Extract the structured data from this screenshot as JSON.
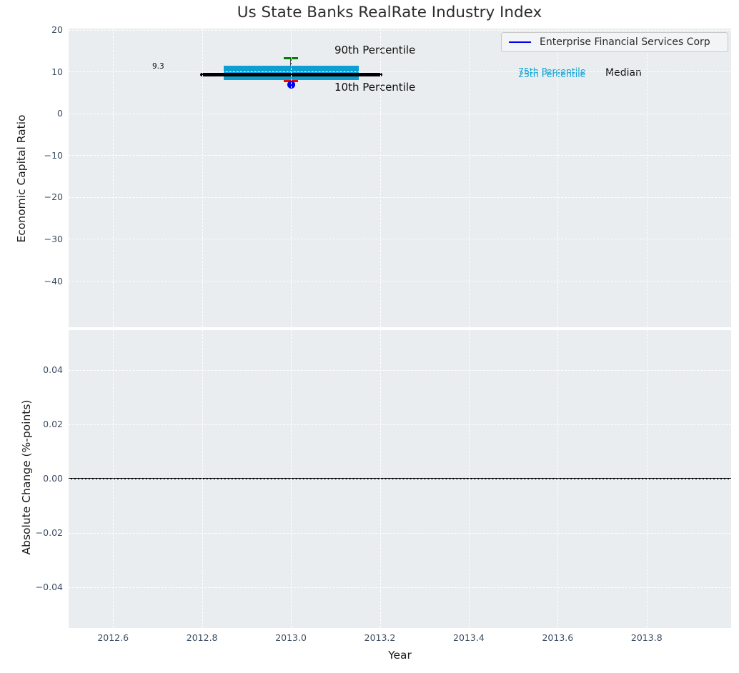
{
  "title": "Us State Banks RealRate Industry Index",
  "legend": {
    "label": "Enterprise Financial Services Corp"
  },
  "annotations": {
    "median_value": "9.3",
    "p90_label": "90th Percentile",
    "p10_label": "10th Percentile",
    "p75_label": "75th Percentile",
    "p25_label": "25th Percentile",
    "median_label": "Median"
  },
  "colors": {
    "plot_bg": "#e9edef",
    "grid": "#ffffff",
    "box": "#0d9fd1",
    "median_line": "#000000",
    "p90_cap": "#008000",
    "p10_cap": "#ff0000",
    "company_dot": "#0000ee",
    "legend_line": "#0000ee",
    "percentile_text": "#0fa3d4",
    "zero_line": "#000000",
    "stem": "#4a4a4a",
    "tick_text": "#3d4e63"
  },
  "chart_data": [
    {
      "type": "boxplot",
      "title": "Us State Banks RealRate Industry Index",
      "xlabel": "Year",
      "ylabel": "Economic Capital Ratio",
      "xlim": [
        2012.5,
        2013.99
      ],
      "ylim": [
        -51.1,
        20.3
      ],
      "grid": true,
      "xticks": [
        {
          "v": 2012.6,
          "label": "2012.6"
        },
        {
          "v": 2012.8,
          "label": "2012.8"
        },
        {
          "v": 2013.0,
          "label": "2013.0"
        },
        {
          "v": 2013.2,
          "label": "2013.2"
        },
        {
          "v": 2013.4,
          "label": "2013.4"
        },
        {
          "v": 2013.6,
          "label": "2013.6"
        },
        {
          "v": 2013.8,
          "label": "2013.8"
        }
      ],
      "yticks": [
        {
          "v": 20,
          "label": "20"
        },
        {
          "v": 10,
          "label": "10"
        },
        {
          "v": 0,
          "label": "0"
        },
        {
          "v": -10,
          "label": "−10"
        },
        {
          "v": -20,
          "label": "−20"
        },
        {
          "v": -30,
          "label": "−30"
        },
        {
          "v": -40,
          "label": "−40"
        }
      ],
      "box": {
        "year": 2013.0,
        "median": 9.3,
        "p75": 11.4,
        "p25": 8.0,
        "p90": 13.2,
        "p10": 7.7,
        "company_value": 6.9,
        "median_halfwidth": 0.205,
        "box_halfwidth": 0.152,
        "cap_halfwidth": 0.016
      },
      "legend_position": "upper right",
      "series": [
        {
          "name": "Enterprise Financial Services Corp",
          "x": [
            2013.0
          ],
          "y": [
            6.9
          ]
        }
      ]
    },
    {
      "type": "line",
      "xlabel": "Year",
      "ylabel": "Absolute Change (%-points)",
      "xlim": [
        2012.5,
        2013.99
      ],
      "ylim": [
        -0.055,
        0.0547
      ],
      "grid": true,
      "zero_line": 0.0,
      "yticks": [
        {
          "v": 0.04,
          "label": "0.04"
        },
        {
          "v": 0.02,
          "label": "0.02"
        },
        {
          "v": 0.0,
          "label": "0.00"
        },
        {
          "v": -0.02,
          "label": "−0.02"
        },
        {
          "v": -0.04,
          "label": "−0.04"
        }
      ],
      "series": []
    }
  ],
  "axis_labels": {
    "top_y": "Economic Capital Ratio",
    "bottom_y": "Absolute Change (%-points)",
    "x": "Year"
  }
}
